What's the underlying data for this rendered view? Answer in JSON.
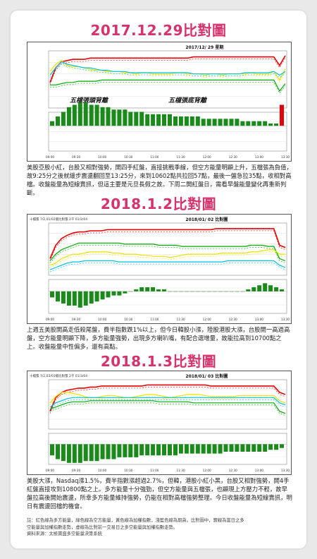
{
  "sections": [
    {
      "title": "2017.12.29比對圖",
      "chart_date": "2017/12/ 29 星期",
      "header_info": "",
      "annotations": [
        "五檔張頭背離",
        "五檔張底背離"
      ],
      "description": "美股亞股小紅，台股又相對強勢，開四手紅盤，直接挑戰季線，但空方能量明顯上升，五檔張為負值，故9:25分之後就緩步震盪翻回至13:25分，來到10602點共拉回57點，最後一盤急拉35點，收相對高檔。收盤能量為短線賣訊，但這主要是元旦長假之故。下周二開紅盤日，需看早盤能量變化再重新判斷。"
    },
    {
      "title": "2018.1.2比對圖",
      "chart_date": "2018/01/ 02 比對圖",
      "header_info": "十檔張 7/2,01/02版比對張 2千 01/2/04",
      "annotations": [],
      "description": "上週五美股開高走低殺尾盤，費半指數跌1%以上，但今日韓股小漲，陸股港股大漲，台股開一高過高盤，空方能量明顯下降，多方能量強勢，出現多方喇叭嘴，有配合選增量，故能拉高到10700點之上。收盤能量中性偏多，還有高點。"
    },
    {
      "title": "2018.1.3比對圖",
      "chart_date": "2018/01/ 03 比對圖",
      "header_info": "十檔張 7/2,03/03版比對張 2千 01/3/04",
      "annotations": [],
      "description": "美股大漲，Nasdaq漲1.5%，費半指數漲超過2.7%，但韓，港股小紅小黑，台股又相對強勢，開4手紅盤直接攻到10800點之上。多方能量十分強勁，但空方能量與五檔張，也顯現上方壓力不輕，故早盤拉高後開始震盪，所幸多方能量維持強勢，仍能在相對高檔強勢整理。今日收盤能量為短線賣訊，明日有震盪回檔的機會。"
    }
  ],
  "notes": [
    "註：紅色線為多方能量，綠色線為空方能量，黃色線為加權指數，淺藍色線為期貨。比對圖中，實線為當日之多",
    "空能量與加權指數走勢，虛線為比對前一交易日之多空能量與加權指數走勢。",
    "資料來源：太極寶盛多空能量決策系統"
  ],
  "colors": {
    "title": "#d6336c",
    "long_energy": "#e60000",
    "short_energy": "#00aa00",
    "index": "#f0e000",
    "futures": "#00c0e0",
    "volume_bar": "#1a8a1a"
  },
  "chart_data": [
    {
      "type": "line",
      "series": [
        {
          "values": [
            46,
            58,
            63,
            64,
            65,
            65,
            65,
            66,
            66,
            66,
            66,
            66,
            66,
            66,
            66,
            66,
            66,
            66,
            66,
            66,
            66,
            66,
            66,
            66,
            66,
            67,
            67,
            67,
            67,
            67,
            67,
            67,
            67,
            67,
            67,
            67,
            67,
            67,
            67,
            67,
            60,
            68
          ]
        },
        {
          "values": [
            44,
            44,
            45,
            46,
            46,
            47,
            47,
            47,
            47,
            48,
            48,
            48,
            48,
            48,
            48,
            48,
            48,
            48,
            48,
            48,
            48,
            48,
            48,
            48,
            48,
            48,
            48,
            48,
            48,
            48,
            48,
            48,
            48,
            48,
            48,
            48,
            48,
            48,
            48,
            48,
            39,
            45
          ]
        },
        {
          "values": [
            55,
            61,
            64,
            60,
            59,
            59,
            58,
            57,
            56,
            56,
            55,
            55,
            55,
            54,
            54,
            53,
            54,
            54,
            53,
            53,
            53,
            53,
            54,
            54,
            53,
            53,
            53,
            52,
            53,
            53,
            52,
            53,
            53,
            53,
            53,
            54,
            53,
            53,
            53,
            55,
            48,
            57
          ]
        },
        {
          "values": [
            52,
            58,
            63,
            61,
            60,
            59,
            58,
            58,
            57,
            56,
            56,
            55,
            55,
            55,
            54,
            54,
            54,
            54,
            54,
            54,
            54,
            54,
            54,
            54,
            54,
            53,
            53,
            53,
            53,
            53,
            53,
            53,
            53,
            53,
            54,
            54,
            54,
            54,
            54,
            55,
            52,
            55
          ]
        }
      ],
      "volume": [
        2,
        4,
        6,
        8,
        9,
        10,
        10,
        9,
        9,
        8,
        8,
        7,
        7,
        7,
        6,
        6,
        6,
        5,
        5,
        5,
        5,
        5,
        4,
        4,
        4,
        4,
        4,
        3,
        3,
        3,
        3,
        3,
        3,
        3,
        2,
        2,
        2,
        2,
        2,
        1,
        1,
        9
      ],
      "xlabels": [
        "09:00",
        "09:30",
        "10:00",
        "10:30",
        "11:00",
        "11:30",
        "12:00",
        "12:30",
        "13:00",
        "13:30"
      ]
    },
    {
      "type": "line",
      "series": [
        {
          "values": [
            40,
            52,
            58,
            61,
            63,
            64,
            64,
            65,
            65,
            65,
            66,
            66,
            66,
            66,
            66,
            66,
            66,
            66,
            66,
            66,
            66,
            66,
            66,
            66,
            66,
            66,
            66,
            66,
            66,
            67,
            67,
            67,
            67,
            67,
            67,
            67,
            67,
            67,
            67,
            67,
            52,
            50
          ]
        },
        {
          "values": [
            38,
            44,
            48,
            50,
            52,
            54,
            54,
            54,
            54,
            54,
            54,
            54,
            54,
            53,
            53,
            53,
            53,
            53,
            53,
            52,
            52,
            52,
            52,
            51,
            51,
            51,
            51,
            51,
            51,
            51,
            51,
            51,
            51,
            51,
            51,
            52,
            52,
            52,
            51,
            51,
            40,
            38
          ]
        },
        {
          "values": [
            34,
            36,
            40,
            42,
            44,
            44,
            45,
            46,
            46,
            46,
            46,
            45,
            45,
            44,
            44,
            44,
            43,
            43,
            42,
            42,
            42,
            41,
            42,
            43,
            44,
            44,
            44,
            44,
            44,
            44,
            45,
            45,
            45,
            45,
            45,
            46,
            46,
            47,
            48,
            48,
            44,
            44
          ]
        },
        {
          "values": [
            30,
            32,
            34,
            36,
            37,
            37,
            38,
            38,
            38,
            38,
            38,
            38,
            37,
            37,
            37,
            37,
            37,
            37,
            37,
            37,
            37,
            37,
            37,
            37,
            37,
            37,
            37,
            37,
            37,
            37,
            37,
            38,
            38,
            38,
            38,
            38,
            38,
            38,
            38,
            38,
            34,
            32
          ]
        }
      ],
      "volume": [
        -3,
        -5,
        -6,
        -7,
        -7,
        -8,
        -7,
        -6,
        -5,
        -4,
        -3,
        -2,
        -2,
        -1,
        0,
        1,
        2,
        2,
        2,
        1,
        1,
        0,
        0,
        0,
        0,
        0,
        0,
        0,
        0,
        0,
        0,
        0,
        0,
        0,
        0,
        1,
        2,
        3,
        4,
        3,
        2,
        1
      ],
      "xlabels": [
        "09:00",
        "09:30",
        "10:00",
        "10:30",
        "11:00",
        "11:30",
        "12:00",
        "12:30",
        "13:00",
        "13:30"
      ]
    },
    {
      "type": "line",
      "series": [
        {
          "values": [
            42,
            55,
            60,
            62,
            63,
            64,
            64,
            65,
            65,
            66,
            66,
            66,
            66,
            66,
            66,
            66,
            66,
            67,
            67,
            67,
            67,
            67,
            67,
            67,
            67,
            67,
            67,
            67,
            66,
            66,
            66,
            66,
            66,
            66,
            66,
            66,
            66,
            66,
            66,
            66,
            60,
            58
          ]
        },
        {
          "values": [
            44,
            46,
            48,
            50,
            51,
            51,
            51,
            52,
            52,
            52,
            52,
            52,
            52,
            52,
            52,
            52,
            52,
            52,
            52,
            51,
            51,
            51,
            51,
            51,
            51,
            50,
            50,
            50,
            50,
            50,
            50,
            50,
            50,
            50,
            50,
            50,
            50,
            50,
            50,
            50,
            42,
            40
          ]
        },
        {
          "values": [
            50,
            56,
            60,
            60,
            59,
            58,
            56,
            55,
            55,
            56,
            57,
            57,
            56,
            55,
            55,
            56,
            57,
            58,
            58,
            57,
            56,
            55,
            56,
            57,
            58,
            58,
            58,
            57,
            56,
            56,
            56,
            56,
            56,
            57,
            57,
            57,
            57,
            57,
            57,
            57,
            52,
            50
          ]
        },
        {
          "values": [
            46,
            50,
            52,
            54,
            55,
            55,
            55,
            55,
            55,
            55,
            55,
            55,
            55,
            55,
            55,
            55,
            55,
            55,
            55,
            55,
            55,
            55,
            55,
            55,
            55,
            55,
            55,
            55,
            55,
            55,
            55,
            55,
            55,
            55,
            55,
            55,
            55,
            55,
            55,
            55,
            50,
            48
          ]
        }
      ],
      "volume": [
        -6,
        -8,
        -9,
        -10,
        -10,
        -10,
        -9,
        -9,
        -9,
        -8,
        -8,
        -8,
        -7,
        -7,
        -7,
        -7,
        -6,
        -6,
        -6,
        -6,
        -6,
        -6,
        -6,
        -5,
        -5,
        -5,
        -5,
        -5,
        -5,
        -5,
        -5,
        -4,
        -4,
        -4,
        -4,
        -4,
        -4,
        -4,
        -4,
        -3,
        -3,
        -2
      ],
      "xlabels": [
        "09:00",
        "09:30",
        "10:00",
        "10:30",
        "11:00",
        "11:30",
        "12:00",
        "12:30",
        "13:00",
        "13:30"
      ]
    }
  ]
}
